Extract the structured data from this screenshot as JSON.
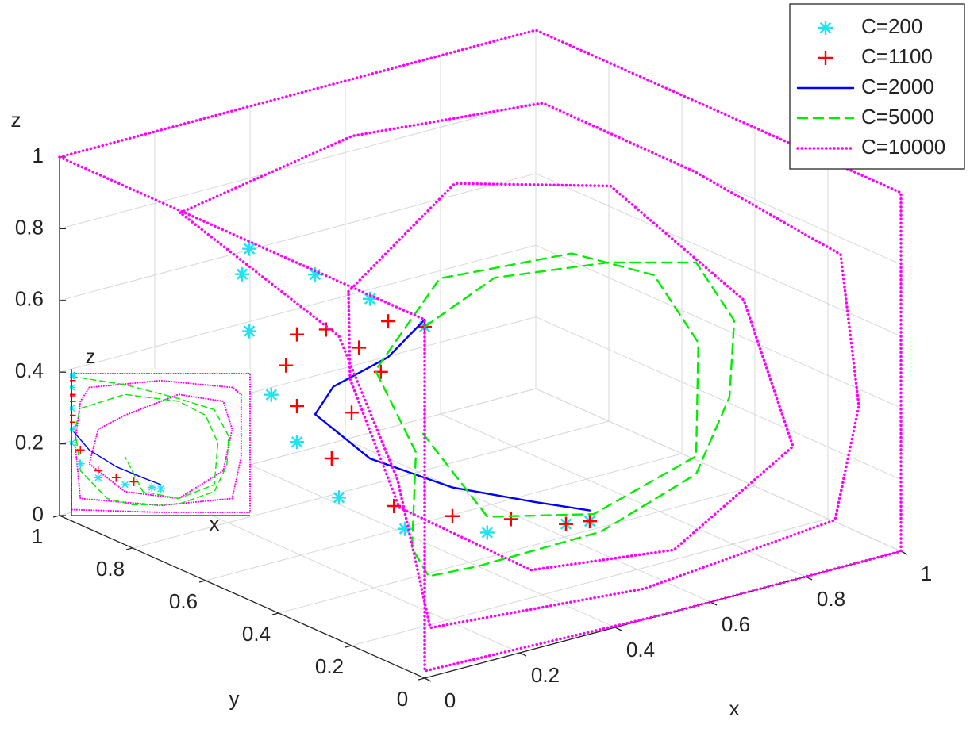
{
  "chart_data": [
    {
      "type": "line3d",
      "xlabel": "x",
      "ylabel": "y",
      "zlabel": "z",
      "xlim": [
        0,
        1
      ],
      "ylim": [
        0,
        1
      ],
      "zlim": [
        0,
        1
      ],
      "xticks": [
        0,
        0.2,
        0.4,
        0.6,
        0.8,
        1
      ],
      "yticks": [
        0,
        0.2,
        0.4,
        0.6,
        0.8,
        1
      ],
      "zticks": [
        0,
        0.2,
        0.4,
        0.6,
        0.8,
        1
      ],
      "grid": true,
      "legend": "upper right",
      "series": [
        {
          "name": "C=200",
          "color": "#1ee3f0",
          "style": "asterisk",
          "x": [
            0,
            0,
            0,
            0,
            0,
            0,
            0,
            0,
            0.05,
            0.15,
            0.3,
            0.45,
            0.5
          ],
          "y": [
            0,
            0.15,
            0.3,
            0.48,
            0.5,
            0.48,
            0.42,
            0.35,
            0.3,
            0.25,
            0.22,
            0.2,
            0.2
          ],
          "z": [
            0.98,
            0.99,
            0.99,
            0.98,
            0.9,
            0.75,
            0.6,
            0.5,
            0.35,
            0.25,
            0.2,
            0.18,
            0.17
          ]
        },
        {
          "name": "C=1100",
          "color": "#ff0000",
          "style": "plus",
          "x": [
            0,
            0,
            0,
            0,
            0,
            0,
            0,
            0,
            0.05,
            0.15,
            0.25,
            0.35,
            0.45,
            0.5,
            0
          ],
          "y": [
            0.35,
            0.38,
            0.35,
            0.27,
            0.18,
            0.12,
            0.1,
            0.2,
            0.32,
            0.28,
            0.25,
            0.22,
            0.2,
            0.2,
            0
          ],
          "z": [
            0.6,
            0.7,
            0.8,
            0.85,
            0.84,
            0.8,
            0.95,
            0.65,
            0.45,
            0.3,
            0.25,
            0.22,
            0.18,
            0.17,
            0.98
          ]
        },
        {
          "name": "C=2000",
          "color": "#0000ff",
          "style": "solid",
          "x": [
            0,
            0,
            0,
            0,
            0.1,
            0.25,
            0.4,
            0.5
          ],
          "y": [
            0,
            0.1,
            0.25,
            0.3,
            0.28,
            0.25,
            0.22,
            0.2
          ],
          "z": [
            1,
            0.85,
            0.7,
            0.6,
            0.45,
            0.33,
            0.25,
            0.2
          ]
        },
        {
          "name": "C=5000",
          "color": "#00ee00",
          "style": "dashed",
          "x": [
            0,
            0.3,
            0.6,
            0.8,
            0.88,
            0.87,
            0.8,
            0.6,
            0.34,
            0.2,
            0.05,
            0.02,
            0.05,
            0.3,
            0.6,
            0.75,
            0.82,
            0.8,
            0.6,
            0.4,
            0.3
          ],
          "y": [
            0,
            0.2,
            0.28,
            0.3,
            0.3,
            0.3,
            0.3,
            0.3,
            0.3,
            0.25,
            0.1,
            0.05,
            0.2,
            0.35,
            0.38,
            0.35,
            0.32,
            0.3,
            0.32,
            0.35,
            0.4
          ],
          "z": [
            0.98,
            0.92,
            0.82,
            0.74,
            0.55,
            0.34,
            0.15,
            0.06,
            0.055,
            0.1,
            0.3,
            0.6,
            0.75,
            0.85,
            0.8,
            0.7,
            0.5,
            0.2,
            0.1,
            0.15,
            0.4
          ]
        },
        {
          "name": "C=10000",
          "color": "#ff00ff",
          "style": "dotted",
          "x": [
            0,
            0.5,
            1,
            1,
            1,
            1,
            1,
            0.5,
            0,
            0,
            0,
            0,
            0,
            null,
            0.1,
            0.5,
            0.9,
            0.95,
            0.95,
            0.95,
            0.9,
            0.5,
            0.05,
            0.02,
            0.05,
            0.1,
            null,
            0.3,
            0.6,
            0.85,
            0.9,
            0.85,
            0.6,
            0.3,
            0.1,
            0.15,
            0.3
          ],
          "y": [
            1,
            1,
            1,
            0.5,
            0,
            0,
            0,
            0,
            0,
            0,
            0,
            0.5,
            1,
            null,
            0.8,
            0.85,
            0.85,
            0.5,
            0.1,
            0.05,
            0.05,
            0.05,
            0.05,
            0.1,
            0.3,
            0.8,
            null,
            0.6,
            0.7,
            0.6,
            0.3,
            0.1,
            0.1,
            0.1,
            0.2,
            0.4,
            0.6
          ],
          "z": [
            1,
            1,
            1,
            1,
            1,
            0.5,
            0,
            0,
            0.02,
            0.5,
            1,
            1,
            1,
            null,
            0.9,
            0.95,
            0.9,
            0.85,
            0.8,
            0.4,
            0.1,
            0.05,
            0.1,
            0.5,
            0.8,
            0.9,
            null,
            0.7,
            0.85,
            0.8,
            0.6,
            0.3,
            0.1,
            0.15,
            0.35,
            0.6,
            0.7
          ]
        }
      ]
    },
    {
      "type": "inset",
      "xlabel": "x",
      "ylabel": "z"
    }
  ]
}
